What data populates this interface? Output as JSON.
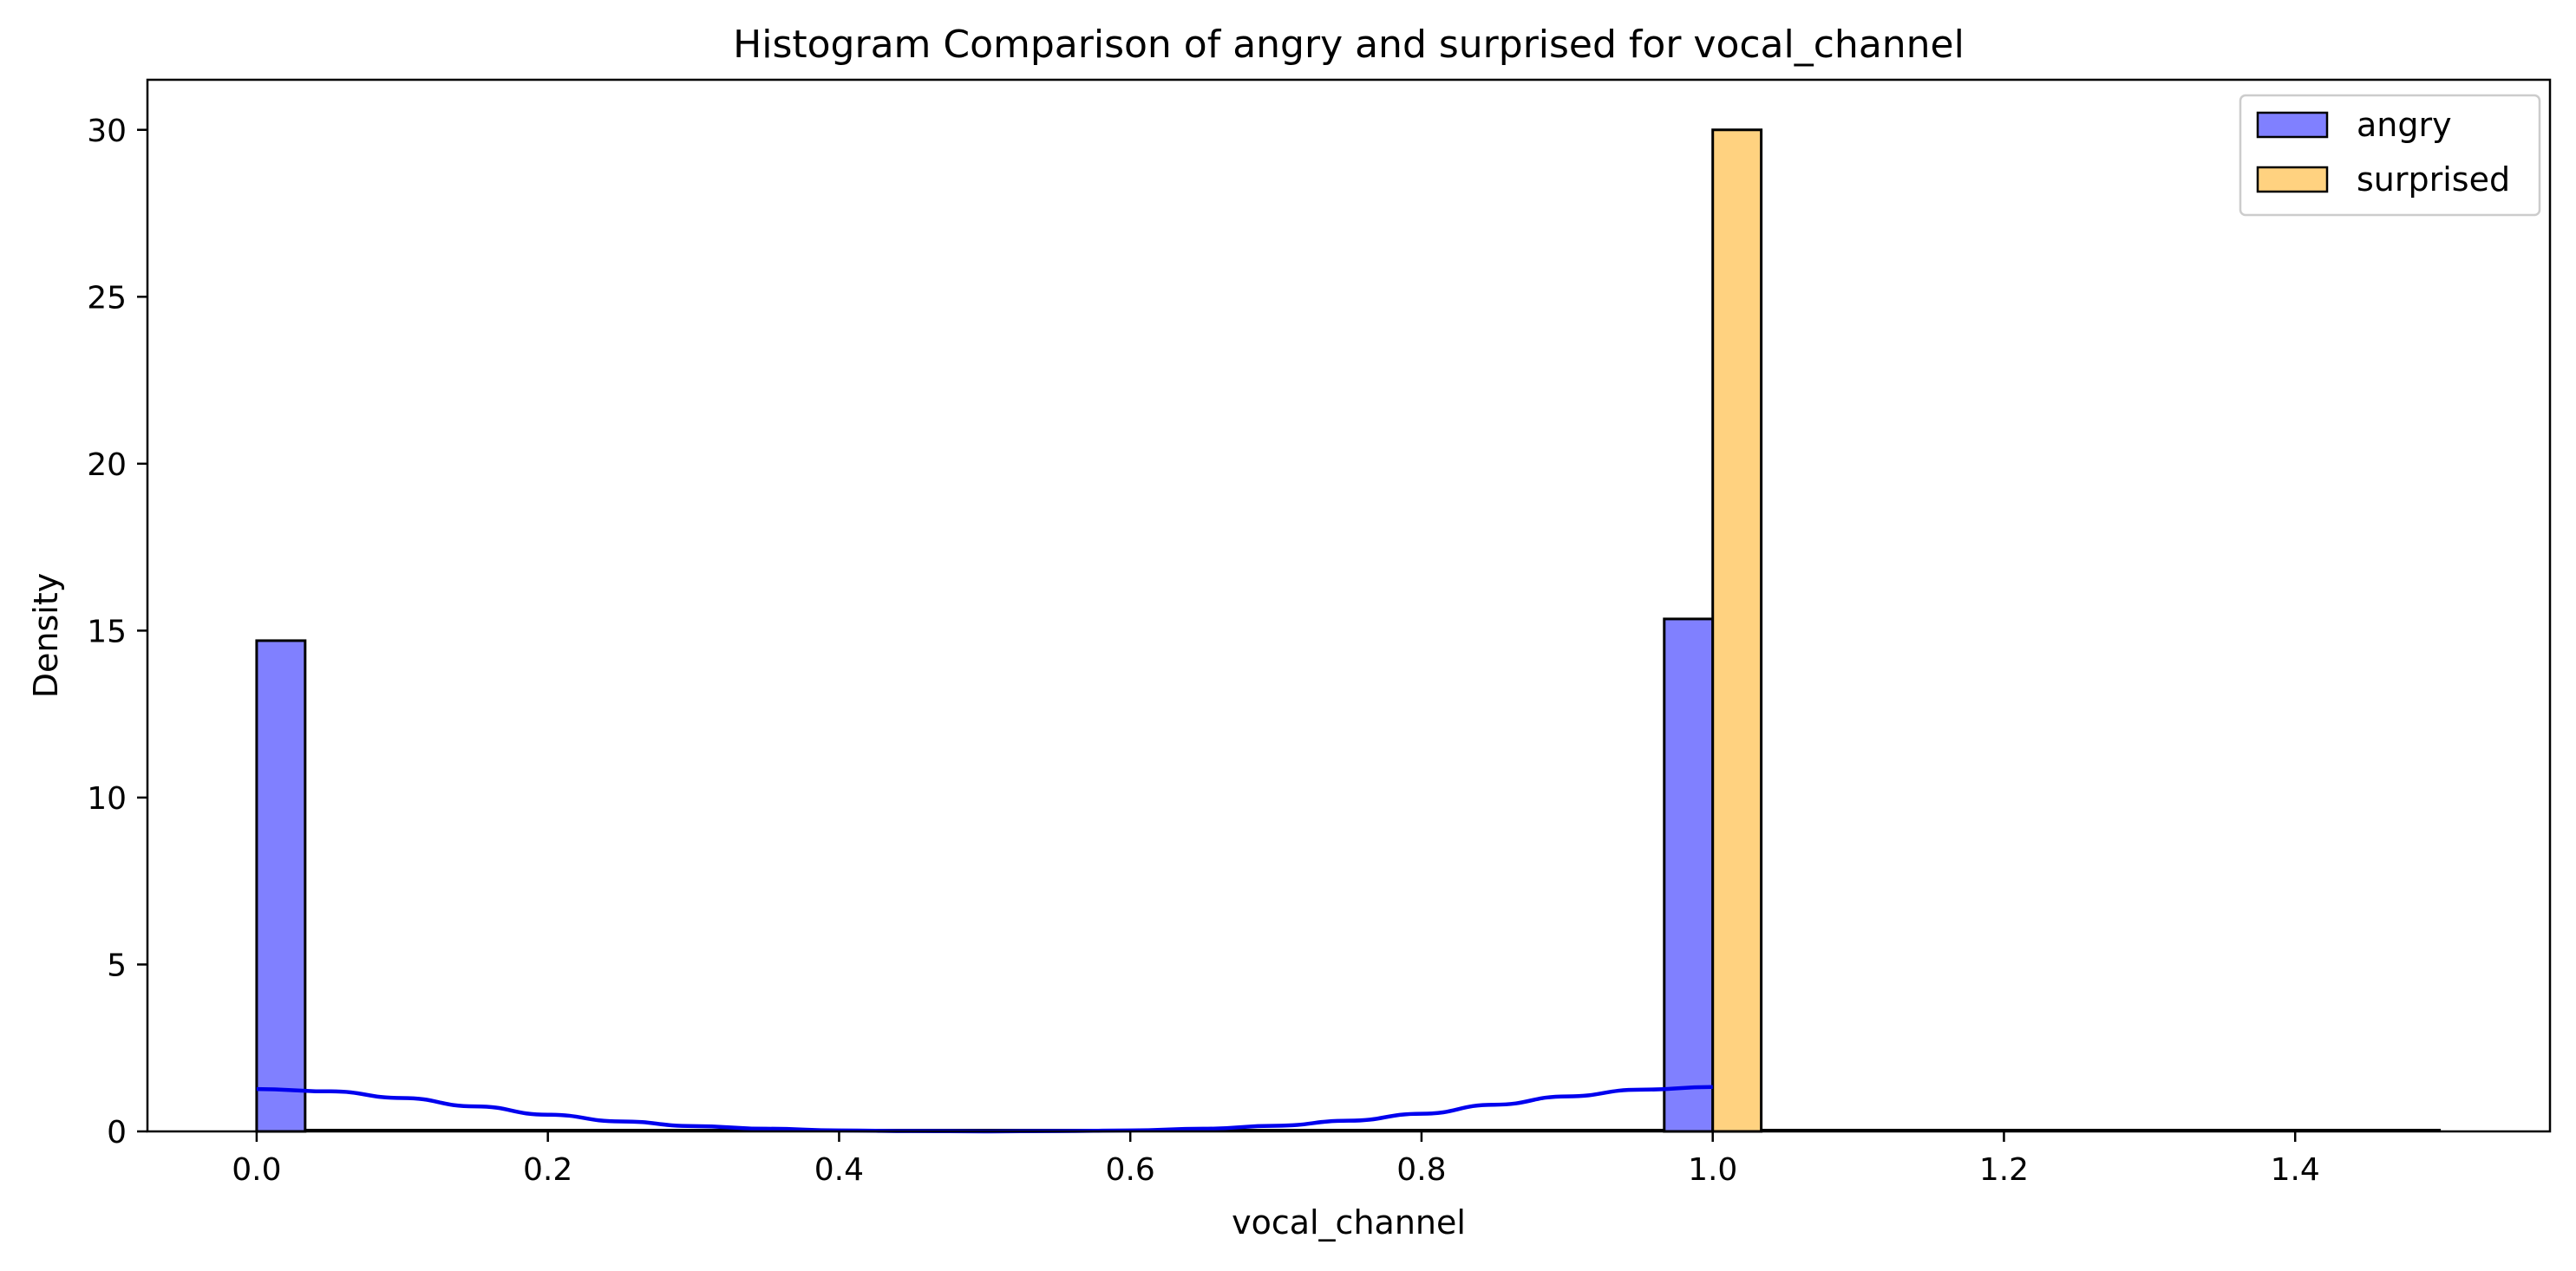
{
  "chart_data": {
    "type": "bar",
    "title": "Histogram Comparison of angry and surprised for vocal_channel",
    "xlabel": "vocal_channel",
    "ylabel": "Density",
    "xlim": [
      -0.075,
      1.575
    ],
    "ylim": [
      0,
      31.5
    ],
    "xticks": [
      0.0,
      0.2,
      0.4,
      0.6,
      0.8,
      1.0,
      1.2,
      1.4
    ],
    "xtick_labels": [
      "0.0",
      "0.2",
      "0.4",
      "0.6",
      "0.8",
      "1.0",
      "1.2",
      "1.4"
    ],
    "yticks": [
      0,
      5,
      10,
      15,
      20,
      25,
      30
    ],
    "ytick_labels": [
      "0",
      "5",
      "10",
      "15",
      "20",
      "25",
      "30"
    ],
    "bin_width": 0.0333,
    "legend_position": "upper right",
    "series": [
      {
        "name": "angry",
        "color": "#8080ff",
        "bars": [
          {
            "x0": 0.0,
            "x1": 0.0333,
            "value": 14.7
          },
          {
            "x0": 0.9667,
            "x1": 1.0,
            "value": 15.35
          }
        ],
        "kde": {
          "color": "#0000ee",
          "x": [
            0.0,
            0.05,
            0.1,
            0.15,
            0.2,
            0.25,
            0.3,
            0.35,
            0.4,
            0.45,
            0.5,
            0.55,
            0.6,
            0.65,
            0.7,
            0.75,
            0.8,
            0.85,
            0.9,
            0.95,
            1.0
          ],
          "y": [
            1.27,
            1.2,
            1.0,
            0.75,
            0.5,
            0.3,
            0.16,
            0.08,
            0.03,
            0.01,
            0.0,
            0.01,
            0.03,
            0.08,
            0.17,
            0.32,
            0.53,
            0.8,
            1.05,
            1.25,
            1.33
          ]
        }
      },
      {
        "name": "surprised",
        "color": "#ffd280",
        "bars": [
          {
            "x0": 1.0,
            "x1": 1.0333,
            "value": 30.0
          }
        ],
        "baseline": {
          "x0": 1.0333,
          "x1": 1.5
        }
      }
    ]
  }
}
